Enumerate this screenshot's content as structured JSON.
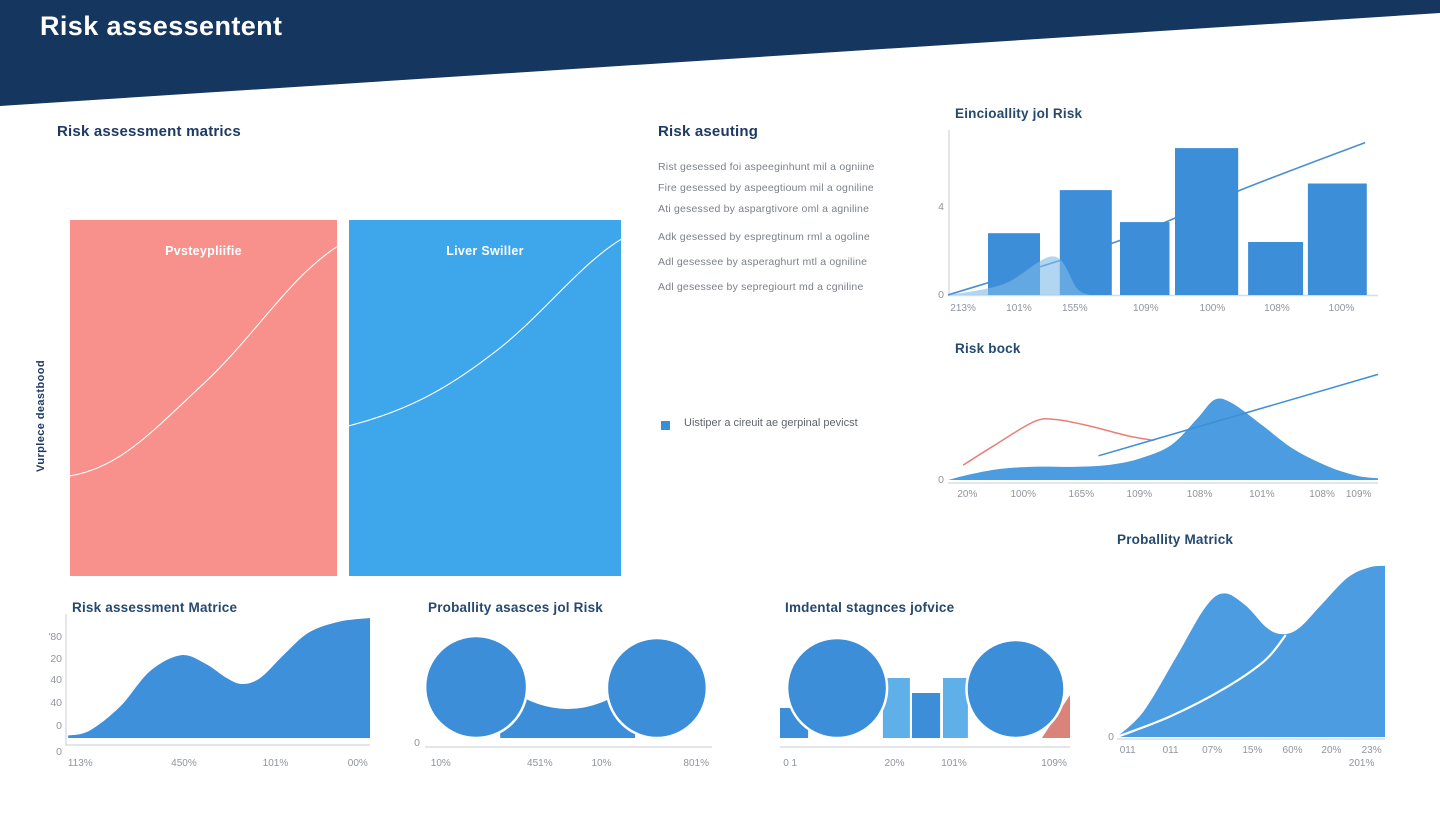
{
  "banner": {
    "title": "Risk assessentent",
    "bg_color": "#15365f",
    "text_color": "#ffffff"
  },
  "colors": {
    "heading": "#1e3a63",
    "chart_title": "#26496e",
    "axis_text": "#8f959d",
    "list_text": "#7b8089",
    "legend_text": "#5f646c",
    "axis_line": "#d9dde2",
    "bar_blue": "#3d8ed8",
    "light_blue": "#5fb0e8",
    "area_blue": "#4b9ce0",
    "area_blue_deep": "#3f90da",
    "overlay_blue": "#7fb9ea",
    "trend_blue": "#4a90d0",
    "red_line": "#e87f78",
    "salmon": "#d9837b",
    "panel_red": "#f8918b",
    "panel_blue": "#3ea6ea",
    "white_curve": "#ffffff"
  },
  "matrix_section": {
    "heading": "Risk assessment matrics",
    "y_axis_label": "Vurplece deastbood",
    "panels": [
      {
        "label": "Pvsteypliifie"
      },
      {
        "label": "Liver Swiller"
      }
    ]
  },
  "notes_section": {
    "heading": "Risk aseuting",
    "items": [
      "Rist gesessed foi aspeeginhunt mil a ogniine",
      "Fire gesessed by aspeegtioum mil a ogniline",
      "Ati gesessed by aspargtivore oml a agniline",
      "Adk gesessed by espregtinum rml a ogoline",
      "Adl gesessee by asperaghurt mtl a ogniline",
      "Adl gesessee by sepregiourt md a cgniline"
    ],
    "legend": {
      "label": "Uistiper a cireuit ae gerpinal pevicst"
    }
  },
  "chart_data": [
    {
      "id": "functionality-of-risk",
      "type": "bar",
      "title": "Eincioallity jol Risk",
      "ylim": [
        0,
        7.2
      ],
      "yticks": [
        {
          "label": "4",
          "value": 4
        },
        {
          "label": "0",
          "value": 0
        }
      ],
      "categories": [
        {
          "label": "213%",
          "x": 0.035
        },
        {
          "label": "101%",
          "x": 0.165
        },
        {
          "label": "155%",
          "x": 0.295
        },
        {
          "label": "109%",
          "x": 0.46
        },
        {
          "label": "100%",
          "x": 0.615
        },
        {
          "label": "108%",
          "x": 0.765
        },
        {
          "label": "100%",
          "x": 0.915
        }
      ],
      "bars": {
        "values": [
          2.8,
          4.75,
          3.3,
          6.65,
          2.4,
          5.05
        ],
        "x": [
          0.093,
          0.26,
          0.4,
          0.528,
          0.698,
          0.837
        ],
        "widths": [
          0.121,
          0.121,
          0.115,
          0.147,
          0.128,
          0.137
        ]
      },
      "trend_line": {
        "points": [
          [
            0,
            0
          ],
          [
            0.39,
            2.4
          ],
          [
            0.68,
            4.75
          ],
          [
            0.97,
            6.9
          ]
        ]
      },
      "area_overlay": {
        "points": [
          [
            0,
            0
          ],
          [
            0.13,
            0.5
          ],
          [
            0.245,
            1.75
          ],
          [
            0.3,
            0.3
          ],
          [
            0.33,
            0
          ]
        ]
      }
    },
    {
      "id": "risk-bock",
      "type": "area2",
      "title": "Risk bock",
      "ylim": [
        0,
        10
      ],
      "yticks": [
        {
          "label": "0",
          "value": 0
        }
      ],
      "categories": [
        {
          "label": "20%",
          "x": 0.045
        },
        {
          "label": "100%",
          "x": 0.175
        },
        {
          "label": "165%",
          "x": 0.31
        },
        {
          "label": "109%",
          "x": 0.445
        },
        {
          "label": "108%",
          "x": 0.585
        },
        {
          "label": "101%",
          "x": 0.73
        },
        {
          "label": "108%",
          "x": 0.87
        },
        {
          "label": "109%",
          "x": 0.955
        }
      ],
      "area": {
        "points": [
          [
            0,
            0
          ],
          [
            0.05,
            0.5
          ],
          [
            0.12,
            1.0
          ],
          [
            0.2,
            1.2
          ],
          [
            0.3,
            1.2
          ],
          [
            0.38,
            1.4
          ],
          [
            0.45,
            2.0
          ],
          [
            0.52,
            3.2
          ],
          [
            0.58,
            5.6
          ],
          [
            0.62,
            7.3
          ],
          [
            0.66,
            7.0
          ],
          [
            0.73,
            5.0
          ],
          [
            0.8,
            2.9
          ],
          [
            0.88,
            1.3
          ],
          [
            0.95,
            0.4
          ],
          [
            1,
            0.15
          ]
        ]
      },
      "red_line": {
        "points": [
          [
            0.035,
            1.35
          ],
          [
            0.11,
            3.2
          ],
          [
            0.2,
            5.3
          ],
          [
            0.25,
            5.5
          ],
          [
            0.33,
            4.9
          ],
          [
            0.42,
            4.0
          ],
          [
            0.48,
            3.6
          ]
        ]
      },
      "blue_line": {
        "points": [
          [
            0.35,
            2.2
          ],
          [
            1,
            9.6
          ]
        ]
      }
    },
    {
      "id": "proballity-matrick",
      "type": "area-white",
      "title": "Proballity Matrick",
      "ylim": [
        0,
        10
      ],
      "yticks": [
        {
          "label": "0",
          "value": 0
        }
      ],
      "categories": [
        {
          "label": "011",
          "x": 0.04
        },
        {
          "label": "011",
          "x": 0.2
        },
        {
          "label": "07%",
          "x": 0.355
        },
        {
          "label": "15%",
          "x": 0.505
        },
        {
          "label": "60%",
          "x": 0.655
        },
        {
          "label": "20%",
          "x": 0.8
        },
        {
          "label": "23%",
          "x": 0.95,
          "sub": "201%"
        }
      ],
      "area": {
        "points": [
          [
            0,
            0
          ],
          [
            0.1,
            1.5
          ],
          [
            0.22,
            4.6
          ],
          [
            0.33,
            7.5
          ],
          [
            0.4,
            8.3
          ],
          [
            0.48,
            7.6
          ],
          [
            0.56,
            6.3
          ],
          [
            0.62,
            5.95
          ],
          [
            0.68,
            6.3
          ],
          [
            0.76,
            7.6
          ],
          [
            0.86,
            9.2
          ],
          [
            0.94,
            9.8
          ],
          [
            1,
            9.9
          ]
        ]
      },
      "white_line": {
        "points": [
          [
            0,
            0
          ],
          [
            0.2,
            1.2
          ],
          [
            0.4,
            2.8
          ],
          [
            0.55,
            4.4
          ],
          [
            0.63,
            5.9
          ]
        ]
      }
    },
    {
      "id": "risk-assessment-matrice",
      "type": "area-axes",
      "title": "Risk assessment Matrice",
      "ylim": [
        0,
        100
      ],
      "yticks": [
        {
          "label": "'80",
          "value": 84
        },
        {
          "label": "20",
          "value": 66
        },
        {
          "label": "40",
          "value": 48
        },
        {
          "label": "40",
          "value": 29
        },
        {
          "label": "0",
          "value": 10
        },
        {
          "label": "0",
          "value": -12
        }
      ],
      "categories": [
        {
          "label": "113%",
          "x": 0.05
        },
        {
          "label": "450%",
          "x": 0.39
        },
        {
          "label": "101%",
          "x": 0.69
        },
        {
          "label": "00%",
          "x": 0.96
        }
      ],
      "area": {
        "points": [
          [
            0.01,
            2
          ],
          [
            0.08,
            6
          ],
          [
            0.18,
            26
          ],
          [
            0.28,
            56
          ],
          [
            0.38,
            69
          ],
          [
            0.46,
            62
          ],
          [
            0.53,
            50
          ],
          [
            0.58,
            45
          ],
          [
            0.64,
            50
          ],
          [
            0.72,
            70
          ],
          [
            0.8,
            88
          ],
          [
            0.9,
            97
          ],
          [
            1,
            100
          ]
        ]
      }
    },
    {
      "id": "proballity-asasces",
      "type": "circles",
      "title": "Proballity asasces jol Risk",
      "yticks": [
        {
          "label": "0",
          "y": 108
        }
      ],
      "categories": [
        {
          "label": "10%",
          "x": 0.055
        },
        {
          "label": "451%",
          "x": 0.4
        },
        {
          "label": "10%",
          "x": 0.615
        },
        {
          "label": "801%",
          "x": 0.945
        }
      ],
      "circles": [
        {
          "cx": 0.178,
          "r": 51
        },
        {
          "cx": 0.808,
          "r": 50
        }
      ],
      "valley": {
        "x1": 0.262,
        "x2": 0.732,
        "edge_h": 55,
        "mid_h": 29
      }
    },
    {
      "id": "imdental-stagnces",
      "type": "circles-bars",
      "title": "Imdental stagnces jofvice",
      "categories": [
        {
          "label": "0 1",
          "x": 0.035
        },
        {
          "label": "20%",
          "x": 0.395
        },
        {
          "label": "101%",
          "x": 0.6
        },
        {
          "label": "109%",
          "x": 0.945
        }
      ],
      "bars": [
        {
          "x": 0.0,
          "w": 0.097,
          "h": 30,
          "color": "bar_blue"
        },
        {
          "x": 0.355,
          "w": 0.093,
          "h": 60,
          "color": "light_blue"
        },
        {
          "x": 0.455,
          "w": 0.097,
          "h": 45,
          "color": "bar_blue"
        },
        {
          "x": 0.562,
          "w": 0.086,
          "h": 60,
          "color": "light_blue"
        }
      ],
      "triangle": {
        "x1": 0.903,
        "x2": 1.0,
        "h": 43
      },
      "circles": [
        {
          "cx": 0.197,
          "r": 50
        },
        {
          "cx": 0.812,
          "r": 49
        }
      ]
    }
  ]
}
